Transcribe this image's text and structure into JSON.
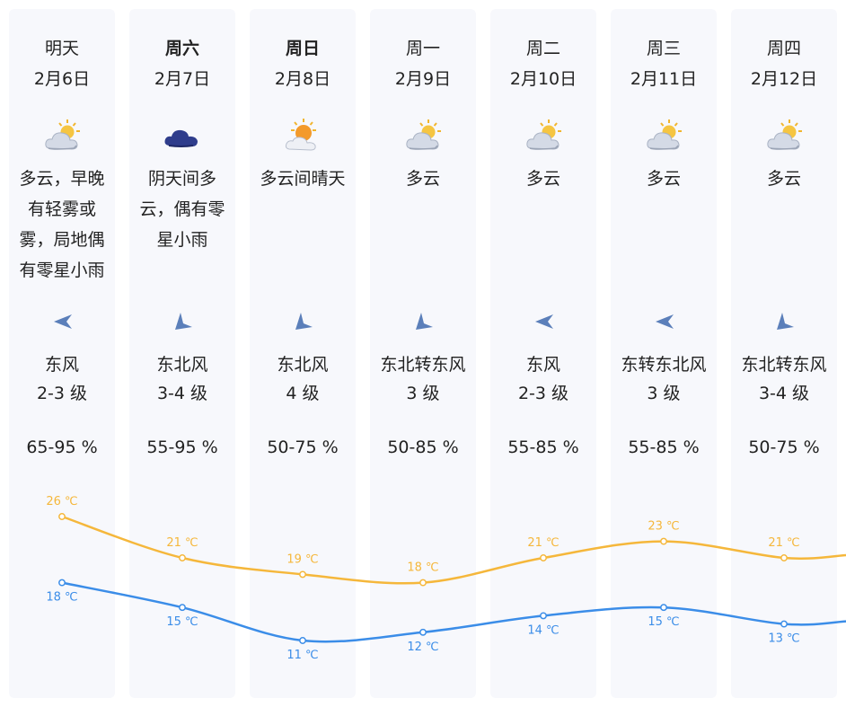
{
  "colors": {
    "high": "#f5b73b",
    "low": "#3b8de8",
    "card": "#f7f8fc"
  },
  "days": [
    {
      "day": "明天",
      "bold": false,
      "date": "2月6日",
      "icon": "partly-cloudy-icon",
      "desc": "多云，早晚有轻雾或雾，局地偶有零星小雨",
      "wind_dir": "west",
      "wind": "东风",
      "level": "2-3 级",
      "humidity": "65-95 %",
      "high": 26,
      "low": 18,
      "high_label": "26 ℃",
      "low_label": "18 ℃"
    },
    {
      "day": "周六",
      "bold": true,
      "date": "2月7日",
      "icon": "overcast-cloud-icon",
      "desc": "阴天间多云，偶有零星小雨",
      "wind_dir": "southwest",
      "wind": "东北风",
      "level": "3-4 级",
      "humidity": "55-95 %",
      "high": 21,
      "low": 15,
      "high_label": "21 ℃",
      "low_label": "15 ℃"
    },
    {
      "day": "周日",
      "bold": true,
      "date": "2月8日",
      "icon": "sunny-cloudy-icon",
      "desc": "多云间晴天",
      "wind_dir": "southwest",
      "wind": "东北风",
      "level": "4 级",
      "humidity": "50-75 %",
      "high": 19,
      "low": 11,
      "high_label": "19 ℃",
      "low_label": "11 ℃"
    },
    {
      "day": "周一",
      "bold": false,
      "date": "2月9日",
      "icon": "partly-cloudy-icon",
      "desc": "多云",
      "wind_dir": "southwest",
      "wind": "东北转东风",
      "level": "3 级",
      "humidity": "50-85 %",
      "high": 18,
      "low": 12,
      "high_label": "18 ℃",
      "low_label": "12 ℃"
    },
    {
      "day": "周二",
      "bold": false,
      "date": "2月10日",
      "icon": "partly-cloudy-icon",
      "desc": "多云",
      "wind_dir": "west",
      "wind": "东风",
      "level": "2-3 级",
      "humidity": "55-85 %",
      "high": 21,
      "low": 14,
      "high_label": "21 ℃",
      "low_label": "14 ℃"
    },
    {
      "day": "周三",
      "bold": false,
      "date": "2月11日",
      "icon": "partly-cloudy-icon",
      "desc": "多云",
      "wind_dir": "west",
      "wind": "东转东北风",
      "level": "3 级",
      "humidity": "55-85 %",
      "high": 23,
      "low": 15,
      "high_label": "23 ℃",
      "low_label": "15 ℃"
    },
    {
      "day": "周四",
      "bold": false,
      "date": "2月12日",
      "icon": "partly-cloudy-icon",
      "desc": "多云",
      "wind_dir": "southwest",
      "wind": "东北转东风",
      "level": "3-4 级",
      "humidity": "50-75 %",
      "high": 21,
      "low": 13,
      "high_label": "21 ℃",
      "low_label": "13 ℃"
    }
  ]
}
